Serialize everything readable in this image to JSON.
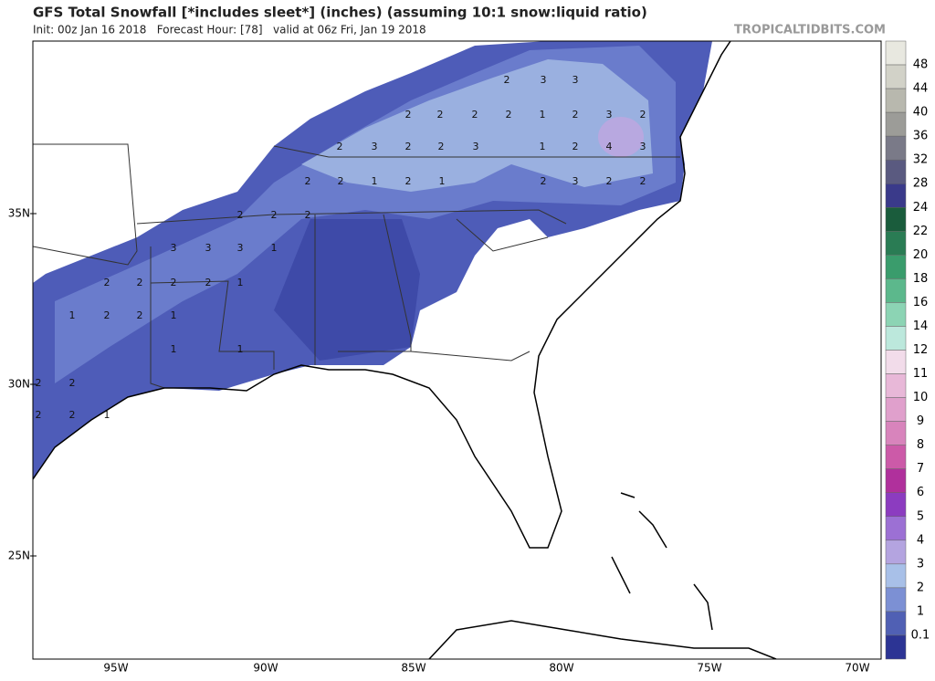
{
  "header": {
    "title": "GFS Total Snowfall [*includes sleet*] (inches) (assuming 10:1 snow:liquid ratio)",
    "subtitle": "Init: 00z Jan 16 2018   Forecast Hour: [78]   valid at 06z Fri, Jan 19 2018",
    "site": "TROPICALTIDBITS.COM"
  },
  "latitude_labels": [
    "35N",
    "30N",
    "25N"
  ],
  "longitude_labels": [
    "95W",
    "90W",
    "85W",
    "80W",
    "75W",
    "70W"
  ],
  "colorbar": {
    "labels": [
      48,
      44,
      40,
      36,
      32,
      28,
      24,
      22,
      20,
      18,
      16,
      14,
      12,
      11,
      10,
      9,
      8,
      7,
      6,
      5,
      4,
      3,
      2,
      1,
      0.1
    ],
    "colors": [
      "#e8e8e0",
      "#d2d2c8",
      "#b8b8ae",
      "#9c9c98",
      "#7a7a88",
      "#5a5a80",
      "#3a3a8a",
      "#1a5c3c",
      "#2a7c54",
      "#3a9c6c",
      "#5cb88c",
      "#8cd4b4",
      "#bce8dc",
      "#f2dcea",
      "#e8b8d8",
      "#e0a0cc",
      "#d884bc",
      "#cc5aa8",
      "#b0309c",
      "#8c3cc0",
      "#9c70d4",
      "#b4a4e0",
      "#a8c0e8",
      "#7c90d4",
      "#5060b4",
      "#2c3494"
    ]
  },
  "contour_labels": [
    2,
    3,
    3,
    2,
    2,
    2,
    2,
    1,
    2,
    3,
    2,
    2,
    3,
    2,
    2,
    3,
    1,
    2,
    4,
    3,
    2,
    2,
    1,
    2,
    1,
    2,
    3,
    2,
    2,
    2,
    2,
    2,
    3,
    3,
    3,
    1,
    2,
    2,
    2,
    2,
    1,
    1,
    2,
    2,
    1,
    1,
    1,
    2,
    2,
    2,
    2,
    1
  ]
}
